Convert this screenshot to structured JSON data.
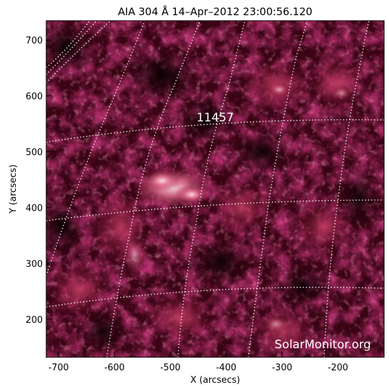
{
  "title": "AIA 304 Å 14–Apr–2012 23:00:56.120",
  "xlabel": "X (arcsecs)",
  "ylabel": "Y (arcsecs)",
  "region_label": "11457",
  "watermark": "SolarMonitor.org",
  "x_ticks": [
    "-700",
    "-600",
    "-500",
    "-400",
    "-300",
    "-200"
  ],
  "y_ticks": [
    "700",
    "600",
    "500",
    "400",
    "300",
    "200"
  ],
  "colors": {
    "background": "#ffffff",
    "sun_dark": "#1a0006",
    "sun_mid": "#7a0d30",
    "sun_bright": "#e0587e",
    "grid": "#ffffff"
  }
}
